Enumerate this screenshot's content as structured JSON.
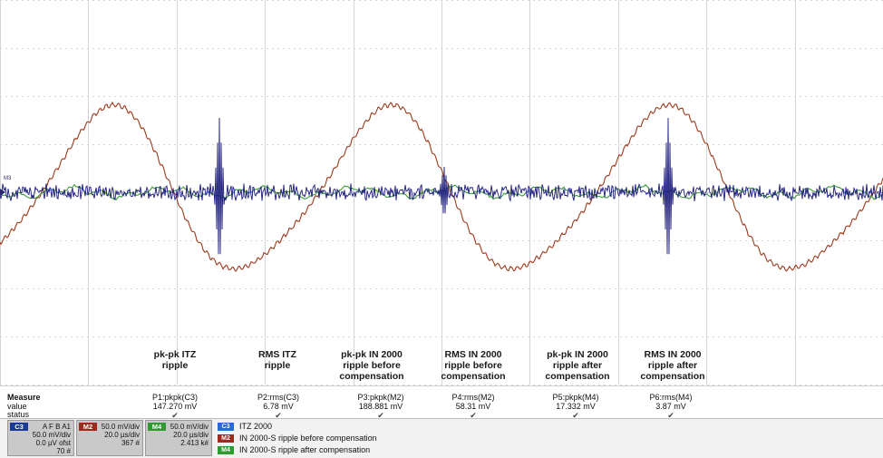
{
  "chart_data": {
    "type": "line",
    "grid": true,
    "x_divisions": 10,
    "y_divisions": 8,
    "series": [
      {
        "name": "ITZ 2000",
        "channel": "C3",
        "color": "#1a1a7a",
        "scale": "50.0 mV/div",
        "offset": "0.0 µV ofst"
      },
      {
        "name": "IN 2000-S ripple before compensation",
        "channel": "M2",
        "color": "#9c3a1c",
        "scale": "50.0 mV/div",
        "timebase": "20.0 µs/div"
      },
      {
        "name": "IN 2000-S ripple after compensation",
        "channel": "M4",
        "color": "#3a9a3a",
        "scale": "50.0 mV/div",
        "timebase": "20.0 µs/div"
      }
    ],
    "annotations": [
      {
        "text": "pk-pk ITZ\nripple"
      },
      {
        "text": "RMS ITZ\nripple"
      },
      {
        "text": "pk-pk IN 2000\nripple before\ncompensation"
      },
      {
        "text": "RMS IN 2000\nripple before\ncompensation"
      },
      {
        "text": "pk-pk IN 2000\nripple after\ncompensation"
      },
      {
        "text": "RMS IN 2000\nripple after\ncompensation"
      }
    ]
  },
  "measure": {
    "labels": {
      "measure": "Measure",
      "value": "value",
      "status": "status"
    },
    "params": [
      {
        "param": "P1:pkpk(C3)",
        "value": "147.270 mV",
        "status": "✔"
      },
      {
        "param": "P2:rms(C3)",
        "value": "6.78 mV",
        "status": "✔"
      },
      {
        "param": "P3:pkpk(M2)",
        "value": "188.881 mV",
        "status": "✔"
      },
      {
        "param": "P4:rms(M2)",
        "value": "58.31 mV",
        "status": "✔"
      },
      {
        "param": "P5:pkpk(M4)",
        "value": "17.332 mV",
        "status": "✔"
      },
      {
        "param": "P6:rms(M4)",
        "value": "3.87 mV",
        "status": "✔"
      }
    ]
  },
  "channels": [
    {
      "tag": "C3",
      "tag_color": "#1a3a9a",
      "header": "A F B A1",
      "line1": "50.0 mV/div",
      "line2": "0.0 µV ofst",
      "line3": "70 #"
    },
    {
      "tag": "M2",
      "tag_color": "#a0281c",
      "header": "",
      "line1": "50.0 mV/div",
      "line2": "20.0 µs/div",
      "line3": "367 #"
    },
    {
      "tag": "M4",
      "tag_color": "#2f9a2f",
      "header": "",
      "line1": "50.0 mV/div",
      "line2": "20.0 µs/div",
      "line3": "2.413 k#"
    }
  ],
  "legend": [
    {
      "tag": "C3",
      "color": "#2a6ad0",
      "label": "ITZ 2000"
    },
    {
      "tag": "M2",
      "color": "#a0281c",
      "label": "IN 2000-S ripple before compensation"
    },
    {
      "tag": "M4",
      "color": "#2f9a2f",
      "label": "IN 2000-S ripple after compensation"
    }
  ],
  "ground_marker": "M3"
}
